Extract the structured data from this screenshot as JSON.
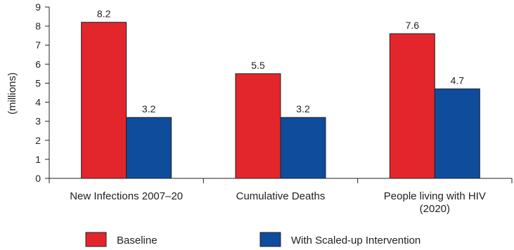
{
  "chart_data": {
    "type": "bar",
    "title": "",
    "xlabel": "",
    "ylabel": "(millions)",
    "ylim": [
      0,
      9
    ],
    "yticks": [
      0,
      1,
      2,
      3,
      4,
      5,
      6,
      7,
      8,
      9
    ],
    "grid": false,
    "legend_position": "bottom",
    "categories": [
      [
        "New Infections 2007–20"
      ],
      [
        "Cumulative Deaths"
      ],
      [
        "People living with HIV",
        "(2020)"
      ]
    ],
    "series": [
      {
        "name": "Baseline",
        "color": "#e3262b",
        "values": [
          8.2,
          5.5,
          7.6
        ],
        "labels": [
          "8.2",
          "5.5",
          "7.6"
        ]
      },
      {
        "name": "With Scaled-up Intervention",
        "color": "#0f4c9c",
        "values": [
          3.2,
          3.2,
          4.7
        ],
        "labels": [
          "3.2",
          "3.2",
          "4.7"
        ]
      }
    ]
  }
}
